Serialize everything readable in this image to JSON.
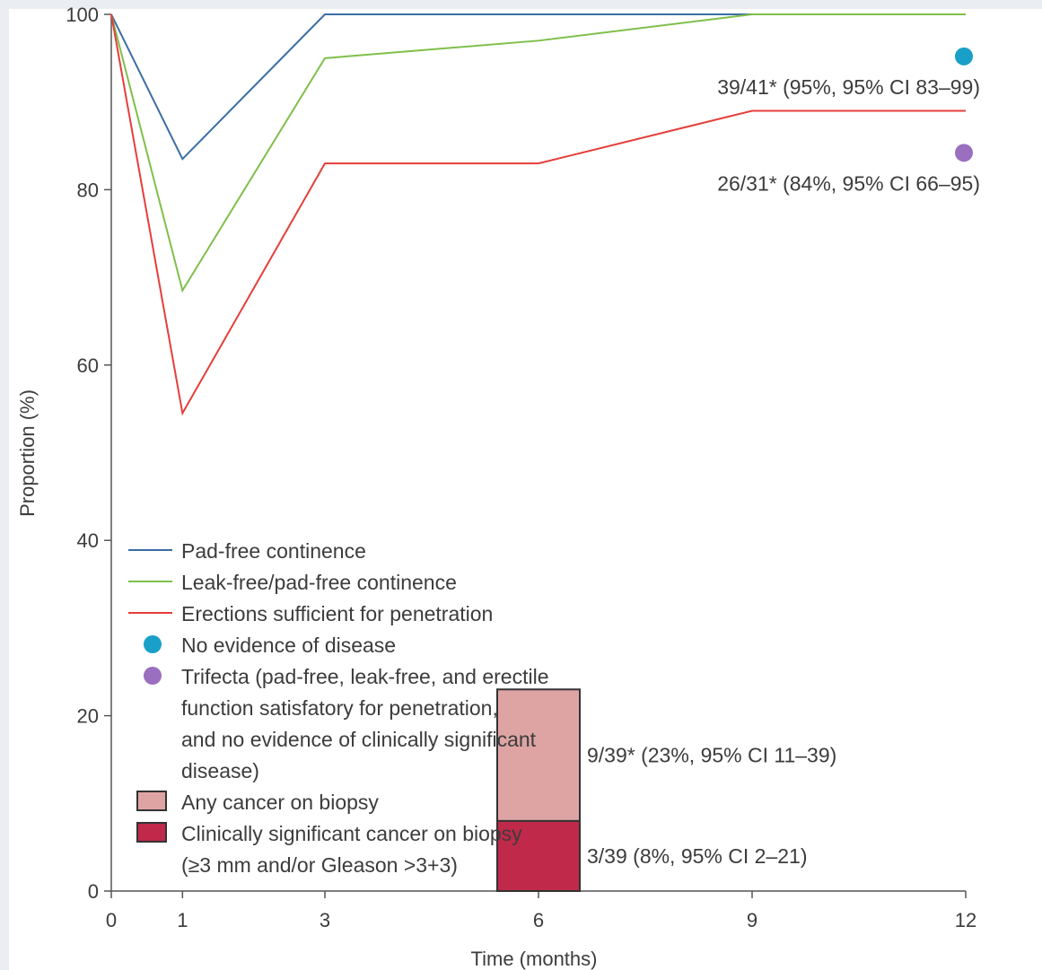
{
  "chart_data": {
    "type": "line",
    "xlabel": "Time (months)",
    "ylabel": "Proportion (%)",
    "xlim": [
      0,
      12
    ],
    "ylim": [
      0,
      100
    ],
    "x_ticks": [
      0,
      1,
      3,
      6,
      9,
      12
    ],
    "y_ticks": [
      0,
      20,
      40,
      60,
      80,
      100
    ],
    "series": [
      {
        "name": "Pad-free continence",
        "color": "#3a6ea5",
        "x": [
          0,
          1,
          3,
          6,
          9,
          12
        ],
        "y": [
          100,
          83.5,
          100,
          100,
          100,
          100
        ]
      },
      {
        "name": "Leak-free/pad-free continence",
        "color": "#7fbf4a",
        "x": [
          0,
          1,
          3,
          6,
          9,
          12
        ],
        "y": [
          100,
          68.5,
          95,
          97,
          100,
          100
        ]
      },
      {
        "name": "Erections sufficient for penetration",
        "color": "#e53e3a",
        "x": [
          0,
          1,
          3,
          6,
          9,
          12
        ],
        "y": [
          100,
          54.5,
          83,
          83,
          89,
          89
        ]
      }
    ],
    "points": [
      {
        "name": "No evidence of disease",
        "color": "#1aa0c8",
        "x": 12,
        "y": 95,
        "label": "39/41* (95%, 95% CI 83–99)"
      },
      {
        "name": "Trifecta (pad-free, leak-free, and erectile function satisfatory for penetration, and no evidence of clinically significant disease)",
        "color": "#9b6fbf",
        "x": 12,
        "y": 84,
        "label": "26/31* (84%, 95% CI 66–95)"
      }
    ],
    "bars": {
      "x": 6,
      "segments": [
        {
          "name": "Clinically significant cancer on biopsy (≥3 mm and/or Gleason >3+3)",
          "color": "#c0294a",
          "value": 8,
          "label": "3/39 (8%, 95% CI 2–21)"
        },
        {
          "name": "Any cancer on biopsy",
          "color": "#dea4a4",
          "value": 23,
          "label": "9/39* (23%, 95% CI 11–39)"
        }
      ]
    },
    "legend": {
      "position": "bottom-left",
      "entries": [
        {
          "kind": "line",
          "color": "#3a6ea5",
          "lines": [
            "Pad-free continence"
          ]
        },
        {
          "kind": "line",
          "color": "#7fbf4a",
          "lines": [
            "Leak-free/pad-free continence"
          ]
        },
        {
          "kind": "line",
          "color": "#e53e3a",
          "lines": [
            "Erections sufficient for penetration"
          ]
        },
        {
          "kind": "dot",
          "color": "#1aa0c8",
          "lines": [
            "No evidence of disease"
          ]
        },
        {
          "kind": "dot",
          "color": "#9b6fbf",
          "lines": [
            "Trifecta (pad-free, leak-free, and erectile",
            "function satisfatory for penetration,",
            "and no evidence of clinically significant",
            "disease)"
          ]
        },
        {
          "kind": "box",
          "color": "#dea4a4",
          "lines": [
            "Any cancer on biopsy"
          ]
        },
        {
          "kind": "box",
          "color": "#c0294a",
          "lines": [
            "Clinically significant cancer on biopsy",
            "(≥3 mm and/or Gleason >3+3)"
          ]
        }
      ]
    }
  }
}
